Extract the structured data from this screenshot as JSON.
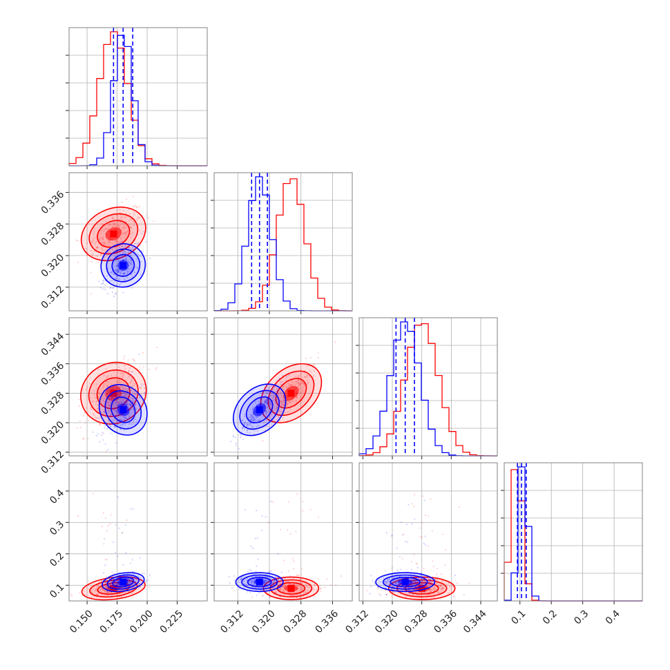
{
  "chart_data": {
    "type": "corner",
    "colors": {
      "red_series": "#ff0000",
      "blue_series": "#0000ff",
      "grid": "#b0b0b0",
      "axes": "#808080"
    },
    "series": [
      {
        "color": "#ff0000",
        "mean": [
          0.172,
          0.3255,
          0.328,
          0.09
        ],
        "sd": [
          0.012,
          0.0035,
          0.0045,
          0.018
        ]
      },
      {
        "color": "#0000ff",
        "mean": [
          0.18,
          0.3175,
          0.3235,
          0.11
        ],
        "sd": [
          0.008,
          0.003,
          0.004,
          0.015
        ]
      }
    ],
    "parameters": [
      {
        "range": [
          0.135,
          0.25
        ],
        "ticks": [
          0.15,
          0.175,
          0.2,
          0.225
        ],
        "tick_labels": [
          "0.150",
          "0.175",
          "0.200",
          "0.225"
        ]
      },
      {
        "range": [
          0.306,
          0.341
        ],
        "ticks": [
          0.312,
          0.32,
          0.328,
          0.336
        ],
        "tick_labels": [
          "0.312",
          "0.320",
          "0.328",
          "0.336"
        ]
      },
      {
        "range": [
          0.311,
          0.3485
        ],
        "ticks": [
          0.312,
          0.32,
          0.328,
          0.336,
          0.344
        ],
        "tick_labels": [
          "0.312",
          "0.320",
          "0.328",
          "0.336",
          "0.344"
        ]
      },
      {
        "range": [
          0.05,
          0.49
        ],
        "ticks": [
          0.1,
          0.2,
          0.3,
          0.4
        ],
        "tick_labels": [
          "0.1",
          "0.2",
          "0.3",
          "0.4"
        ]
      }
    ],
    "quantile_lines": [
      {
        "param": 0,
        "values": [
          0.172,
          0.18,
          0.188
        ]
      },
      {
        "param": 1,
        "values": [
          0.3155,
          0.3175,
          0.3195
        ]
      },
      {
        "param": 2,
        "values": [
          0.321,
          0.3235,
          0.326
        ]
      },
      {
        "param": 3,
        "values": [
          0.092,
          0.105,
          0.12
        ]
      }
    ],
    "grid": true
  }
}
